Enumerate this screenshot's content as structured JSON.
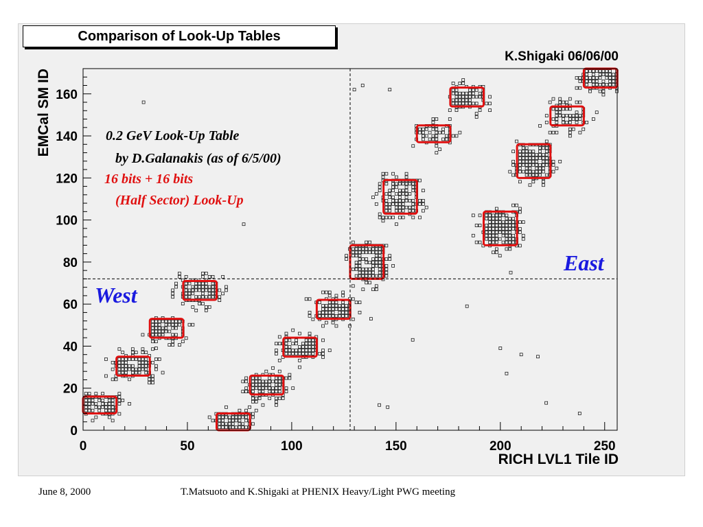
{
  "title": "Comparison of Look-Up Tables",
  "author_date": "K.Shigaki 06/06/00",
  "footer": {
    "date": "June 8, 2000",
    "credit": "T.Matsuoto and K.Shigaki at PHENIX Heavy/Light PWG meeting"
  },
  "colors": {
    "box": "#e01010",
    "annot_red": "#e01010",
    "annot_blue": "#1a1adf",
    "panel": "#f0f0f0"
  },
  "chart_data": {
    "type": "scatter",
    "title": "Comparison of Look-Up Tables",
    "xlabel": "RICH LVL1 Tile ID",
    "ylabel": "EMCal SM ID",
    "xlim": [
      0,
      256
    ],
    "ylim": [
      0,
      172
    ],
    "x_ticks": [
      0,
      50,
      100,
      150,
      200,
      250
    ],
    "y_ticks": [
      0,
      20,
      40,
      60,
      80,
      100,
      120,
      140,
      160
    ],
    "divider_lines": {
      "x": 128,
      "y": 72
    },
    "annotations": {
      "line1": "0.2 GeV Look-Up Table",
      "line2": "by D.Galanakis (as of 6/5/00)",
      "line3": "16 bits + 16 bits",
      "line4": "(Half Sector) Look-Up",
      "west": "West",
      "east": "East"
    },
    "boxes": [
      {
        "x0": 0,
        "x1": 16,
        "y0": 8,
        "y1": 16
      },
      {
        "x0": 16,
        "x1": 32,
        "y0": 26,
        "y1": 35
      },
      {
        "x0": 32,
        "x1": 48,
        "y0": 44,
        "y1": 53
      },
      {
        "x0": 48,
        "x1": 64,
        "y0": 62,
        "y1": 71
      },
      {
        "x0": 64,
        "x1": 80,
        "y0": 0,
        "y1": 8
      },
      {
        "x0": 80,
        "x1": 96,
        "y0": 17,
        "y1": 26
      },
      {
        "x0": 96,
        "x1": 112,
        "y0": 35,
        "y1": 44
      },
      {
        "x0": 112,
        "x1": 128,
        "y0": 53,
        "y1": 62
      },
      {
        "x0": 128,
        "x1": 144,
        "y0": 72,
        "y1": 88
      },
      {
        "x0": 144,
        "x1": 160,
        "y0": 103,
        "y1": 119
      },
      {
        "x0": 160,
        "x1": 176,
        "y0": 137,
        "y1": 145
      },
      {
        "x0": 176,
        "x1": 192,
        "y0": 154,
        "y1": 163
      },
      {
        "x0": 192,
        "x1": 208,
        "y0": 88,
        "y1": 104
      },
      {
        "x0": 208,
        "x1": 224,
        "y0": 120,
        "y1": 136
      },
      {
        "x0": 224,
        "x1": 240,
        "y0": 145,
        "y1": 154
      },
      {
        "x0": 240,
        "x1": 256,
        "y0": 163,
        "y1": 172
      }
    ],
    "scatter_points": [
      [
        29,
        156
      ],
      [
        77,
        98
      ],
      [
        130,
        162
      ],
      [
        134,
        164
      ],
      [
        147,
        162
      ],
      [
        138,
        53
      ],
      [
        158,
        43
      ],
      [
        184,
        59
      ],
      [
        200,
        39
      ],
      [
        203,
        27
      ],
      [
        210,
        36
      ],
      [
        218,
        35
      ],
      [
        222,
        13
      ],
      [
        238,
        8
      ],
      [
        142,
        12
      ],
      [
        146,
        11
      ],
      [
        205,
        75
      ]
    ]
  }
}
